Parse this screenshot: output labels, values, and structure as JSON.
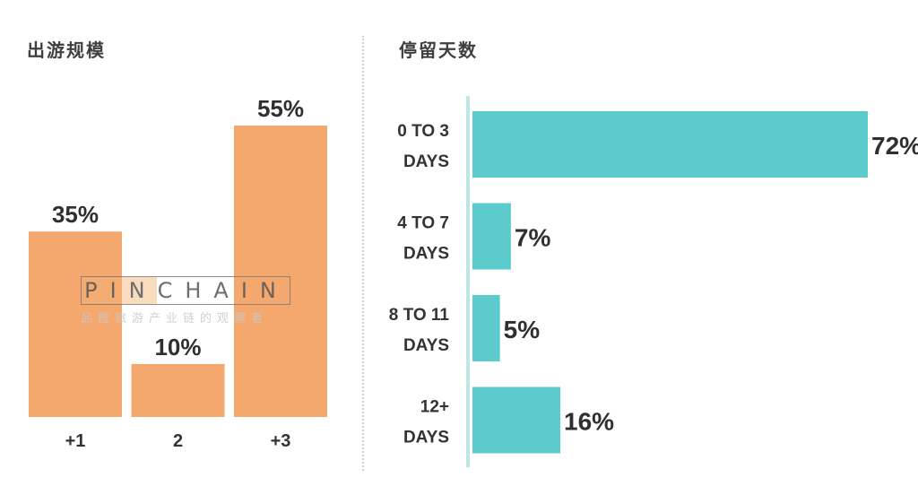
{
  "left_title": "出游规模",
  "right_title": "停留天数",
  "watermark": {
    "brand": "PINCHAIN",
    "tagline": "品橙旅游产业链的观察者"
  },
  "colors": {
    "orange": "#f5a86e",
    "teal": "#5ccbcb",
    "axis": "#bfe6e6"
  },
  "chart_data": [
    {
      "type": "bar",
      "orientation": "vertical",
      "title": "出游规模",
      "categories": [
        "+1",
        "2",
        "+3"
      ],
      "values": [
        35,
        10,
        55
      ],
      "labels": [
        "35%",
        "10%",
        "55%"
      ],
      "ylim": [
        0,
        55
      ],
      "grid": false
    },
    {
      "type": "bar",
      "orientation": "horizontal",
      "title": "停留天数",
      "categories": [
        [
          "0 TO 3",
          "DAYS"
        ],
        [
          "4 TO 7",
          "DAYS"
        ],
        [
          "8 TO 11",
          "DAYS"
        ],
        [
          "12+",
          "DAYS"
        ]
      ],
      "values": [
        72,
        7,
        5,
        16
      ],
      "labels": [
        "72%",
        "7%",
        "5%",
        "16%"
      ],
      "xlim": [
        0,
        72
      ],
      "grid": false
    }
  ]
}
